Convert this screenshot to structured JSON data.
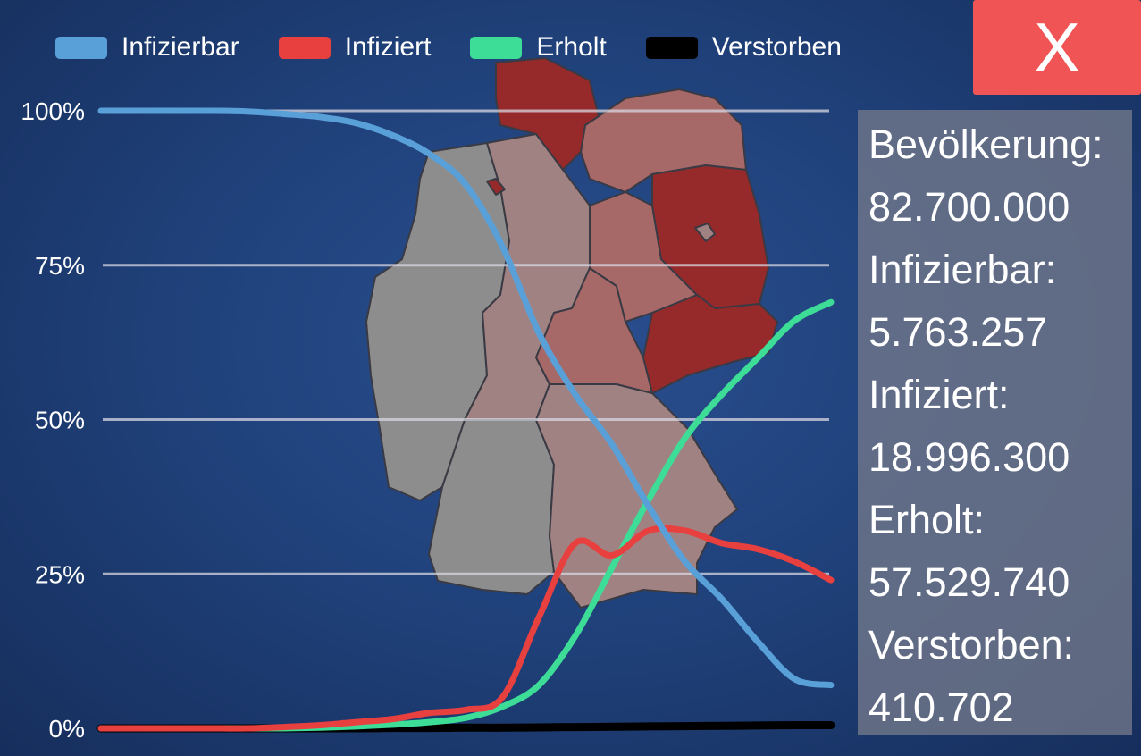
{
  "legend": [
    {
      "label": "Infizierbar",
      "color": "#5aa0d8"
    },
    {
      "label": "Infiziert",
      "color": "#e8403f"
    },
    {
      "label": "Erholt",
      "color": "#3ddc97"
    },
    {
      "label": "Verstorben",
      "color": "#000000"
    }
  ],
  "close_button": {
    "label": "X",
    "icon": "close-icon",
    "color": "#f05454"
  },
  "stats": {
    "population_label": "Bevölkerung:",
    "population_value": "82.700.000",
    "infizierbar_label": "Infizierbar:",
    "infizierbar_value": "5.763.257",
    "infiziert_label": "Infiziert:",
    "infiziert_value": "18.996.300",
    "erholt_label": "Erholt:",
    "erholt_value": "57.529.740",
    "verstorben_label": "Verstorben:",
    "verstorben_value": "410.702"
  },
  "map": {
    "region": "Germany",
    "heavily_affected_color": "#962a2a",
    "moderately_affected_color": "#a76868",
    "slightly_affected_color": "#a08282",
    "unaffected_color": "#8d8d8d"
  },
  "chart_data": {
    "type": "line",
    "ylim": [
      0,
      100
    ],
    "y_ticks": [
      {
        "value": 100,
        "label": "100%"
      },
      {
        "value": 75,
        "label": "75%"
      },
      {
        "value": 50,
        "label": "50%"
      },
      {
        "value": 25,
        "label": "25%"
      },
      {
        "value": 0,
        "label": "0%"
      }
    ],
    "xlabel": "",
    "ylabel": "",
    "grid": true,
    "x": [
      0,
      5,
      10,
      15,
      20,
      25,
      30,
      35,
      40,
      45,
      50,
      55,
      60,
      65,
      70,
      75,
      80,
      85,
      90,
      95,
      100
    ],
    "series": [
      {
        "name": "Infizierbar",
        "color": "#5aa0d8",
        "values": [
          100,
          100,
          100,
          100,
          99.9,
          99.5,
          99,
          98,
          96,
          93,
          88,
          78,
          64,
          54,
          46,
          36,
          27,
          21,
          14,
          8,
          7
        ]
      },
      {
        "name": "Infiziert",
        "color": "#e8403f",
        "values": [
          0,
          0,
          0,
          0,
          0,
          0.2,
          0.5,
          1,
          1.5,
          2.5,
          3,
          5,
          18,
          30,
          28,
          32,
          32,
          30,
          29,
          27,
          24
        ]
      },
      {
        "name": "Erholt",
        "color": "#3ddc97",
        "values": [
          0,
          0,
          0,
          0,
          0,
          0,
          0.1,
          0.3,
          0.6,
          1,
          1.7,
          3.5,
          7,
          15,
          26,
          37,
          47,
          54,
          60,
          66,
          69
        ]
      },
      {
        "name": "Verstorben",
        "color": "#000000",
        "values": [
          0,
          0,
          0,
          0,
          0,
          0,
          0,
          0,
          0.05,
          0.05,
          0.1,
          0.1,
          0.15,
          0.2,
          0.25,
          0.3,
          0.35,
          0.4,
          0.45,
          0.5,
          0.5
        ]
      }
    ]
  }
}
